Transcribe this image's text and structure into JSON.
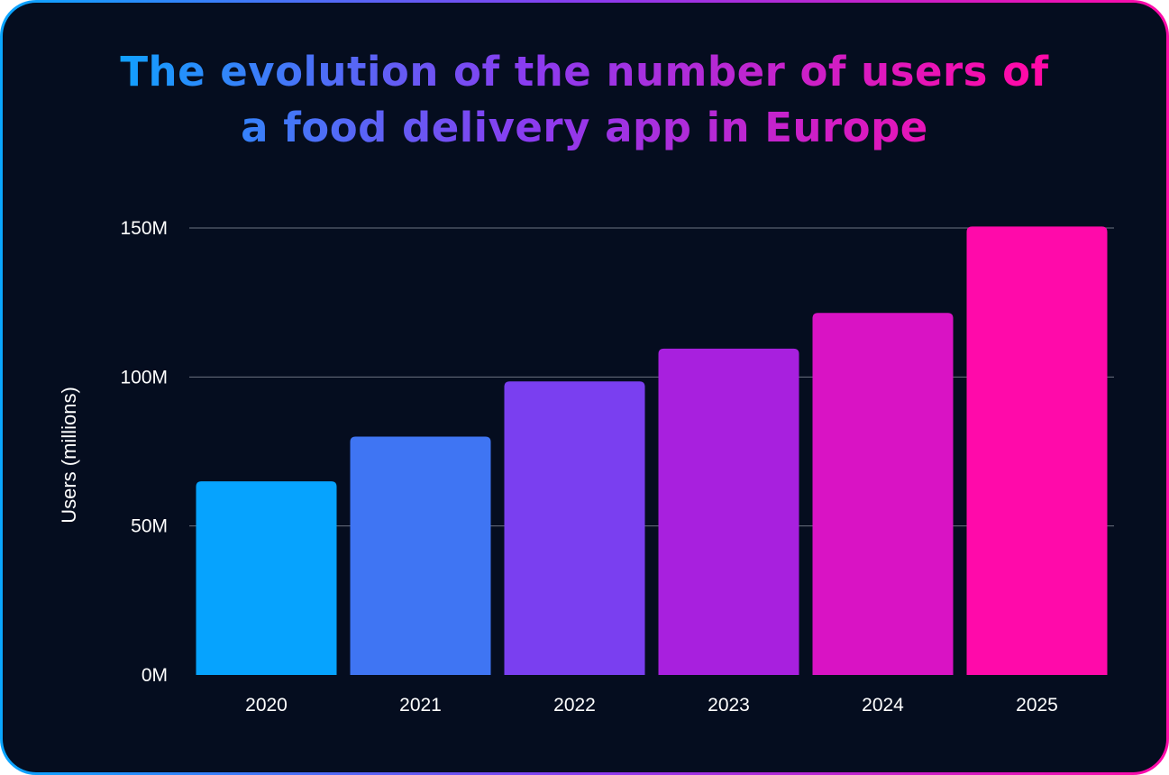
{
  "title_lines": [
    "The evolution of the number of users of",
    "a food delivery app in Europe"
  ],
  "colors": {
    "background": "#050d1f",
    "gradient_start": "#0aa6ff",
    "gradient_mid": "#8a3cf0",
    "gradient_end": "#ff0aa8",
    "gridline": "#6b7280",
    "text": "#ffffff"
  },
  "chart_data": {
    "type": "bar",
    "title": "The evolution of the number of users of a food delivery app in Europe",
    "xlabel": "",
    "ylabel": "Users (millions)",
    "categories": [
      "2020",
      "2021",
      "2022",
      "2023",
      "2024",
      "2025"
    ],
    "values": [
      65,
      80,
      98.5,
      109.5,
      121.5,
      150.5
    ],
    "bar_colors": [
      "#06a3fe",
      "#3f75f3",
      "#7a3ff0",
      "#a820de",
      "#d913c4",
      "#ff0aaa"
    ],
    "ylim": [
      0,
      150
    ],
    "yticks": [
      0,
      50,
      100,
      150
    ],
    "ytick_labels": [
      "0M",
      "50M",
      "100M",
      "150M"
    ],
    "grid": true
  }
}
